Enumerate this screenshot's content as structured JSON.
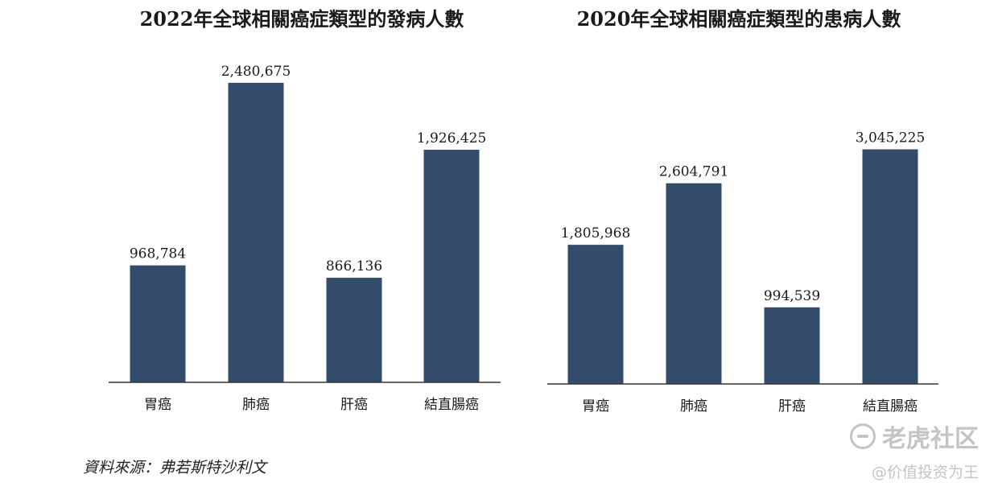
{
  "chart_data": [
    {
      "type": "bar",
      "title": "2022年全球相關癌症類型的發病人數",
      "categories": [
        "胃癌",
        "肺癌",
        "肝癌",
        "結直腸癌"
      ],
      "values": [
        968784,
        2480675,
        866136,
        1926425
      ],
      "value_labels": [
        "968,784",
        "2,480,675",
        "866,136",
        "1,926,425"
      ],
      "ylim": [
        0,
        2800000
      ],
      "bar_color": "#344c6b",
      "grid": false
    },
    {
      "type": "bar",
      "title": "2020年全球相關癌症類型的患病人數",
      "categories": [
        "胃癌",
        "肺癌",
        "肝癌",
        "結直腸癌"
      ],
      "values": [
        1805968,
        2604791,
        994539,
        3045225
      ],
      "value_labels": [
        "1,805,968",
        "2,604,791",
        "994,539",
        "3,045,225"
      ],
      "ylim": [
        0,
        3500000
      ],
      "bar_color": "#344c6b",
      "grid": false
    }
  ],
  "source": "資料來源：弗若斯特沙利文",
  "watermark": {
    "logo_text": "老虎社区",
    "user": "@价值投资为王",
    "icon": "tiger-logo-icon",
    "color": "#c4c4c4"
  }
}
